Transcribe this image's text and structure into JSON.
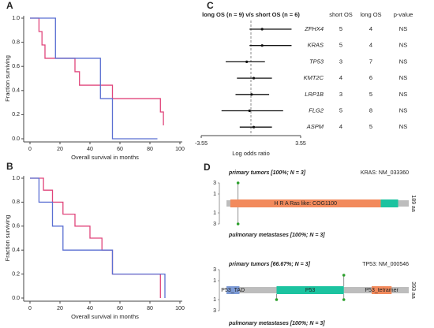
{
  "chart_data": [
    {
      "type": "step",
      "label": "A",
      "ylabel": "Fraction surviving",
      "xlabel": "Overall survival in months",
      "xlim": [
        0,
        100
      ],
      "xticks": [
        0,
        20,
        40,
        60,
        80,
        100
      ],
      "ylim": [
        0,
        1
      ],
      "yticks": [
        {
          "value": 0,
          "label": "0.0"
        },
        {
          "value": 0.2,
          "label": "0.2"
        },
        {
          "value": 0.4,
          "label": "0.4"
        },
        {
          "value": 0.6,
          "label": "0.6"
        },
        {
          "value": 0.8,
          "label": "0.8"
        },
        {
          "value": 1,
          "label": "1.0"
        }
      ],
      "series": [
        {
          "color": "#e0457b",
          "x": [
            0,
            6,
            8,
            10,
            30,
            33,
            55,
            87,
            89
          ],
          "values": [
            1,
            0.889,
            0.778,
            0.667,
            0.556,
            0.444,
            0.333,
            0.222,
            0.111
          ]
        },
        {
          "color": "#5a6fd2",
          "x": [
            0,
            17,
            47,
            55,
            85
          ],
          "values": [
            1,
            0.667,
            0.333,
            0,
            0
          ]
        }
      ]
    },
    {
      "type": "step",
      "label": "B",
      "ylabel": "Fraction surviving",
      "xlabel": "Overall survival in months",
      "xlim": [
        0,
        100
      ],
      "xticks": [
        0,
        20,
        40,
        60,
        80,
        100
      ],
      "ylim": [
        0,
        1
      ],
      "yticks": [
        {
          "value": 0,
          "label": "0.0"
        },
        {
          "value": 0.2,
          "label": "0.2"
        },
        {
          "value": 0.4,
          "label": "0.4"
        },
        {
          "value": 0.6,
          "label": "0.6"
        },
        {
          "value": 0.8,
          "label": "0.8"
        },
        {
          "value": 1,
          "label": "1.0"
        }
      ],
      "series": [
        {
          "color": "#e0457b",
          "x": [
            0,
            9,
            15,
            22,
            30,
            40,
            48,
            55,
            87
          ],
          "values": [
            1,
            0.9,
            0.8,
            0.7,
            0.6,
            0.5,
            0.4,
            0.2,
            0
          ]
        },
        {
          "color": "#5a6fd2",
          "x": [
            0,
            6,
            15,
            22,
            55,
            90
          ],
          "values": [
            1,
            0.8,
            0.6,
            0.4,
            0.2,
            0
          ]
        }
      ]
    },
    {
      "type": "forest",
      "label": "C",
      "title": "long OS (n = 9) v/s short OS (n = 6)",
      "xlabel": "Log odds ratio",
      "xlim": [
        -3.55,
        3.55
      ],
      "xticks": [
        -3.55,
        3.55
      ],
      "reference_line": 0,
      "categories": [
        "ZFHX4",
        "KRAS",
        "TP53",
        "KMT2C",
        "LRP1B",
        "FLG2",
        "ASPM"
      ],
      "values": [
        0.8,
        0.8,
        -0.3,
        0.2,
        0.05,
        -0.1,
        0.2
      ],
      "ci_low": [
        -0.1,
        -0.1,
        -1.8,
        -1.0,
        -1.1,
        -2.1,
        -0.8
      ],
      "ci_high": [
        2.9,
        2.9,
        1.0,
        1.5,
        1.3,
        2.3,
        1.5
      ],
      "table": {
        "headers": [
          "short OS",
          "long OS",
          "p-value"
        ],
        "rows": [
          [
            5,
            4,
            "NS"
          ],
          [
            5,
            4,
            "NS"
          ],
          [
            3,
            7,
            "NS"
          ],
          [
            4,
            6,
            "NS"
          ],
          [
            3,
            5,
            "NS"
          ],
          [
            5,
            8,
            "NS"
          ],
          [
            4,
            5,
            "NS"
          ]
        ]
      }
    },
    {
      "type": "lollipop",
      "label": "D",
      "ylim": [
        0,
        3
      ],
      "yticks": [
        1,
        3
      ],
      "tracks": [
        {
          "top_label": "primary tumors [100%; N = 3]",
          "bottom_label": "pulmonary metastases [100%; N = 3]",
          "gene": "KRAS: NM_033360",
          "length": 189,
          "length_label": "189 aa",
          "domains": [
            {
              "name": "H R A Ras like: COG1100",
              "start": 4,
              "end": 160,
              "color": "#f28a5c"
            },
            {
              "name": null,
              "start": 160,
              "end": 178,
              "color": "#1cc3a0"
            }
          ],
          "up": {
            "x": [
              12
            ],
            "values": [
              3
            ]
          },
          "down": {
            "x": [
              12
            ],
            "values": [
              3
            ]
          }
        },
        {
          "top_label": "primary tumors [66.67%; N = 3]",
          "bottom_label": "pulmonary metastases [100%; N = 3]",
          "gene": "TP53: NM_000546",
          "length": 393,
          "length_label": "393 aa",
          "domains": [
            {
              "name": "P53_TAD",
              "start": 0,
              "end": 28,
              "color": "#7d9bd6"
            },
            {
              "name": "P53",
              "start": 108,
              "end": 253,
              "color": "#1cc3a0"
            },
            {
              "name": "P53_tetramer",
              "start": 313,
              "end": 356,
              "color": "#f28a5c"
            }
          ],
          "up": {
            "x": [
              253
            ],
            "values": [
              2
            ]
          },
          "down": {
            "x": [
              108,
              253
            ],
            "values": [
              1,
              1
            ]
          }
        }
      ]
    }
  ]
}
